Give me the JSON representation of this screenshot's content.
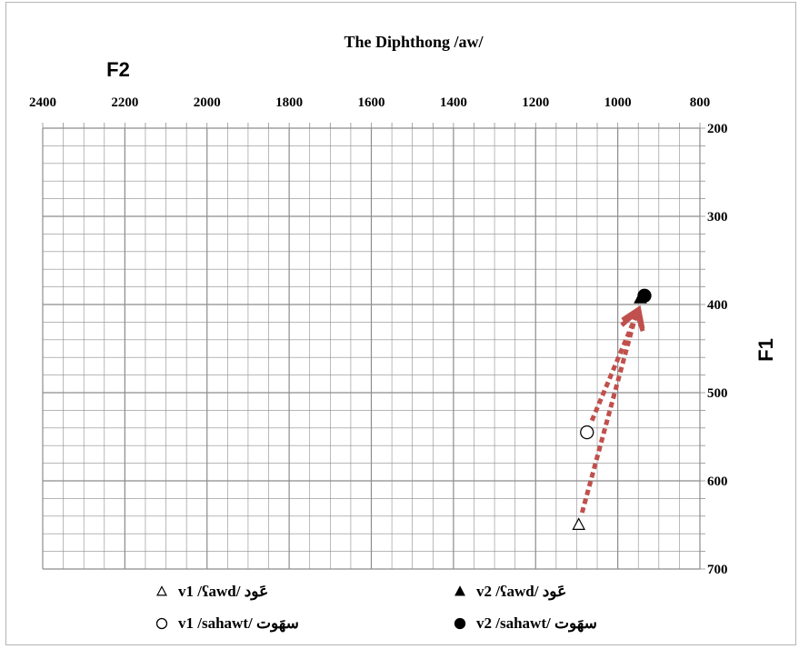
{
  "chart_data": {
    "type": "scatter",
    "title": "The Diphthong /aw/",
    "xlabel": "F2",
    "ylabel": "F1",
    "x_axis_position": "top",
    "x_reversed": true,
    "y_axis_position": "right",
    "y_reversed": true,
    "xlim": [
      800,
      2400
    ],
    "ylim": [
      200,
      700
    ],
    "x_ticks": [
      "2400",
      "2200",
      "2000",
      "1800",
      "1600",
      "1400",
      "1200",
      "1000",
      "800"
    ],
    "y_ticks": [
      "200",
      "300",
      "400",
      "500",
      "600",
      "700"
    ],
    "grid": true,
    "legend_position": "bottom",
    "series": [
      {
        "legend": "v1 /ʕawd/ عَود",
        "marker": "open-triangle",
        "x": 1095,
        "y": 650
      },
      {
        "legend": "v2 /ʕawd/ عَود",
        "marker": "filled-triangle",
        "x": 945,
        "y": 393
      },
      {
        "legend": "v1 /sahawt/ سهَوت",
        "marker": "open-circle",
        "x": 1075,
        "y": 545
      },
      {
        "legend": "v2 /sahawt/ سهَوت",
        "marker": "filled-circle",
        "x": 935,
        "y": 390
      }
    ],
    "arrows": [
      {
        "from_series": "v1 /ʕawd/ عَود",
        "to_series": "v2 /ʕawd/ عَود",
        "style": "dotted",
        "color": "#c0504d"
      },
      {
        "from_series": "v1 /sahawt/ سهَوت",
        "to_series": "v2 /sahawt/ سهَوت",
        "style": "dotted",
        "color": "#c0504d"
      }
    ],
    "colors": {
      "grid": "#8c8c8c",
      "marker": "#000000",
      "arrow": "#c0504d"
    }
  }
}
